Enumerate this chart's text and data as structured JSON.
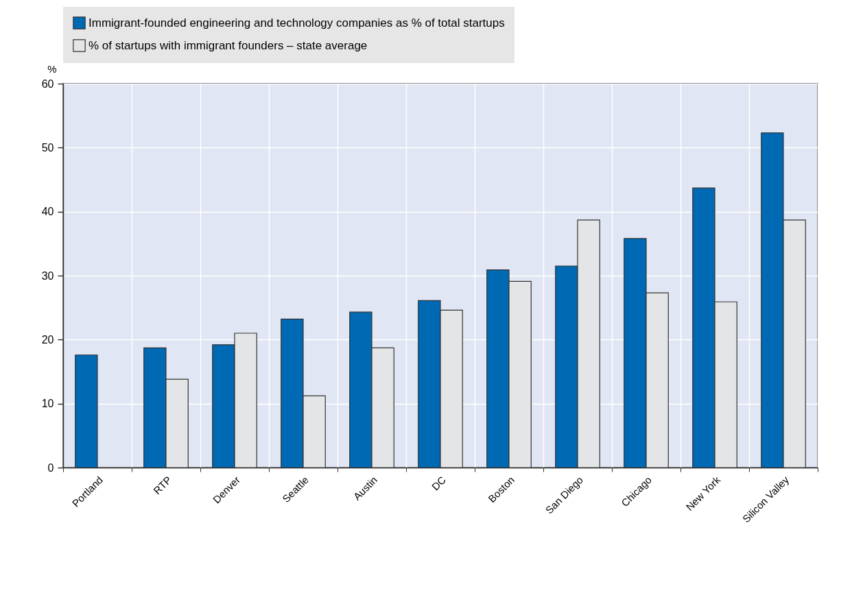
{
  "chart_data": {
    "type": "bar",
    "ylabel": "%",
    "categories": [
      "Portland",
      "RTP",
      "Denver",
      "Seattle",
      "Austin",
      "DC",
      "Boston",
      "San Diego",
      "Chicago",
      "New York",
      "Silicon Valley"
    ],
    "series": [
      {
        "name": "Immigrant-founded engineering and technology companies as % of total startups",
        "color": "#0069b4",
        "values": [
          17.6,
          18.7,
          19.2,
          23.2,
          24.3,
          26.1,
          30.9,
          31.5,
          35.8,
          43.7,
          52.3
        ]
      },
      {
        "name": "% of startups with immigrant founders – state average",
        "color": "#e4e5e7",
        "values": [
          null,
          13.8,
          21.0,
          11.2,
          18.7,
          24.6,
          29.1,
          38.7,
          27.3,
          25.9,
          38.7
        ]
      }
    ],
    "ylim": [
      0,
      60
    ],
    "yticks": [
      0,
      10,
      20,
      30,
      40,
      50,
      60
    ],
    "grid": true,
    "legend": "top"
  }
}
